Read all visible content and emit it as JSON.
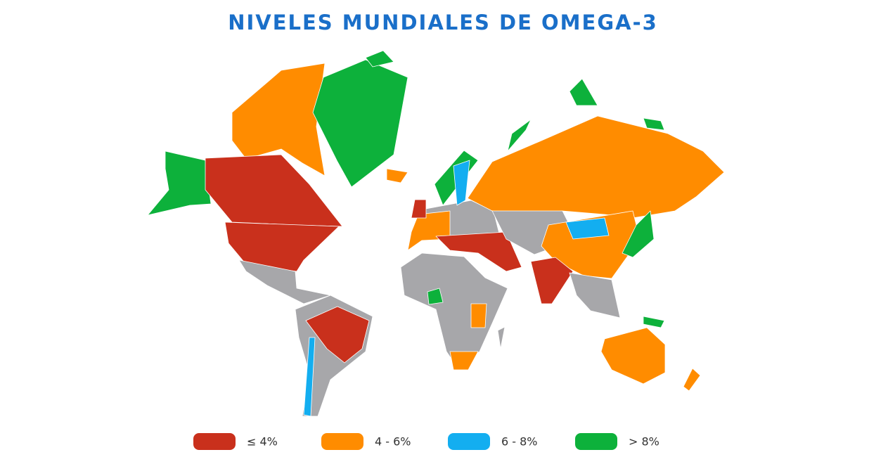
{
  "title": "NIVELES MUNDIALES DE OMEGA-3",
  "legend": [
    {
      "label": "≤ 4%",
      "color": "#c9301c"
    },
    {
      "label": "4 - 6%",
      "color": "#ff8c00"
    },
    {
      "label": "6 - 8%",
      "color": "#13aef0"
    },
    {
      "label": "> 8%",
      "color": "#0db13b"
    }
  ]
}
